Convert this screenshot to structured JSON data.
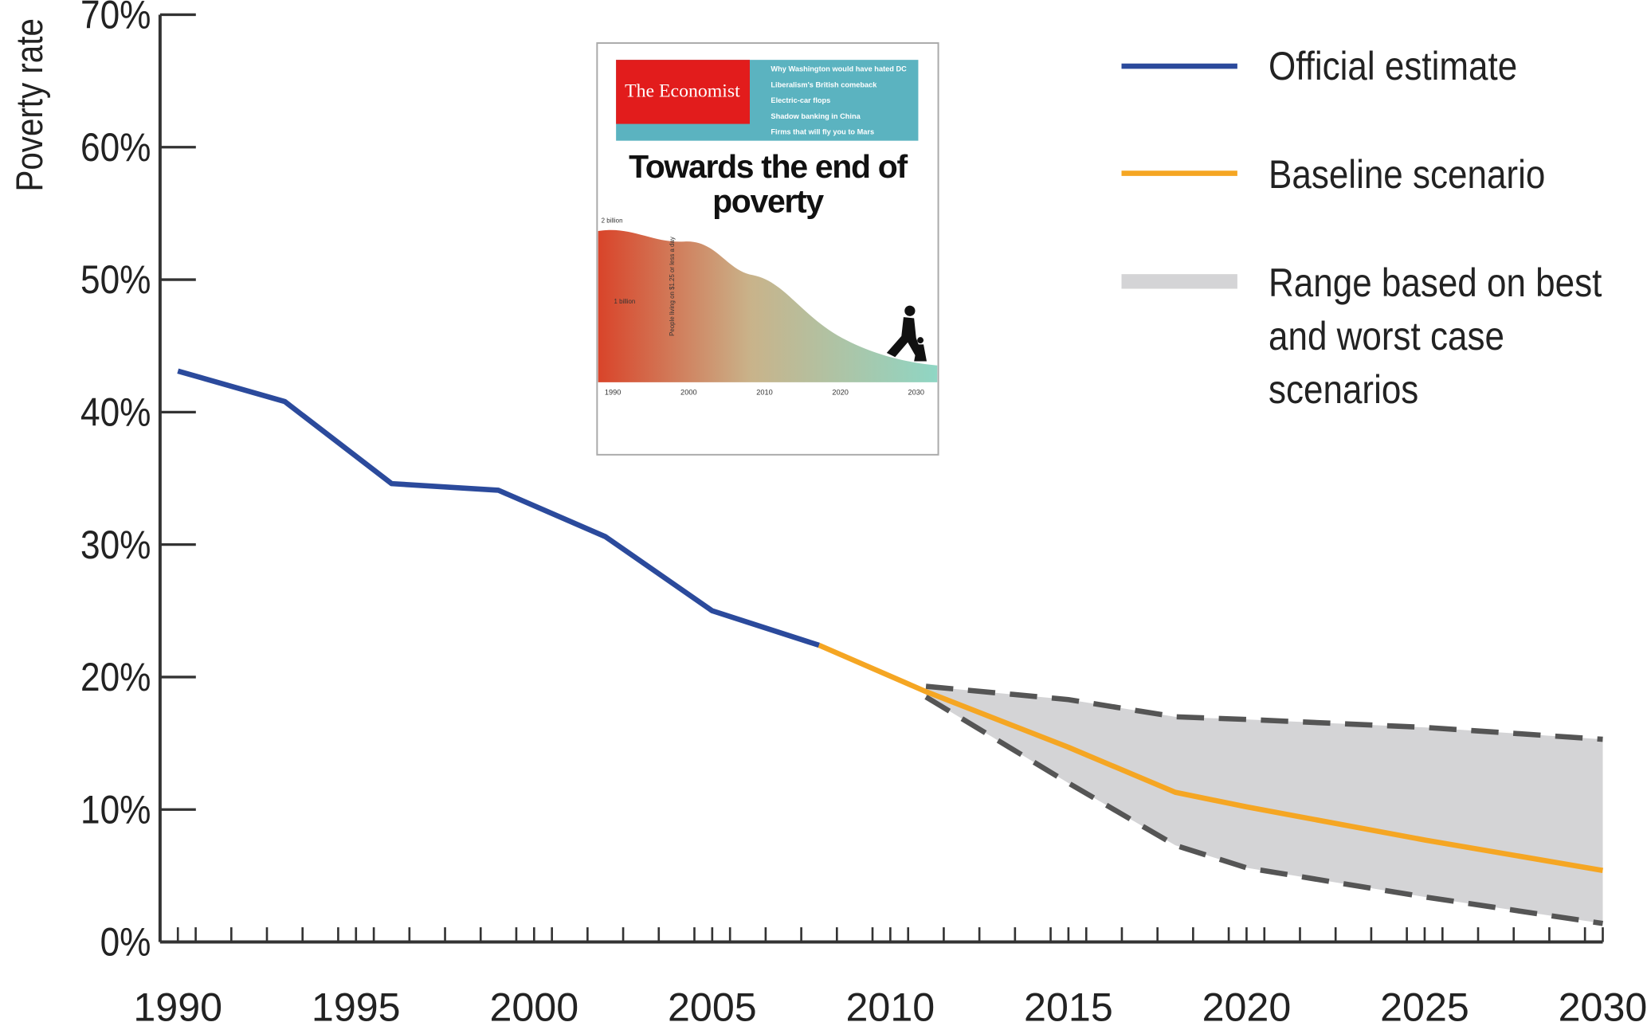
{
  "chart_data": {
    "type": "line",
    "ylabel": "Poverty rate",
    "x": [
      1990,
      1993,
      1996,
      1999,
      2002,
      2005,
      2008,
      2011,
      2015,
      2018,
      2020,
      2025,
      2030
    ],
    "xlim": [
      1989.5,
      2030
    ],
    "xticks": [
      1990,
      1995,
      2000,
      2005,
      2010,
      2015,
      2020,
      2025,
      2030
    ],
    "ylim": [
      0,
      70
    ],
    "yticks": [
      {
        "value": 0,
        "label": "0%"
      },
      {
        "value": 10,
        "label": "10%"
      },
      {
        "value": 20,
        "label": "20%"
      },
      {
        "value": 30,
        "label": "30%"
      },
      {
        "value": 40,
        "label": "40%"
      },
      {
        "value": 50,
        "label": "50%"
      },
      {
        "value": 60,
        "label": "60%"
      },
      {
        "value": 70,
        "label": "70%"
      }
    ],
    "series": [
      {
        "name": "Official estimate",
        "color": "#2b4a9c",
        "values": [
          43.1,
          40.8,
          34.6,
          34.1,
          30.6,
          25.0,
          22.4,
          null,
          null,
          null,
          null,
          null,
          null
        ]
      },
      {
        "name": "Baseline scenario",
        "color": "#f5a623",
        "values": [
          null,
          null,
          null,
          null,
          null,
          null,
          22.4,
          18.9,
          14.7,
          11.3,
          10.2,
          7.7,
          5.4
        ]
      }
    ],
    "range": {
      "name": "Range based on best and worst case scenarios",
      "color": "#d4d4d6",
      "line_color": "#555555",
      "upper": [
        null,
        null,
        null,
        null,
        null,
        null,
        null,
        19.3,
        18.3,
        17.0,
        16.8,
        16.2,
        15.3
      ],
      "lower": [
        null,
        null,
        null,
        null,
        null,
        null,
        null,
        18.5,
        12.0,
        7.3,
        5.6,
        3.4,
        1.4
      ]
    }
  },
  "inset": {
    "masthead": "The Economist",
    "headline": "Towards the end of poverty",
    "teasers": [
      "Why Washington would have hated DC",
      "Liberalism's British comeback",
      "Electric-car flops",
      "Shadow banking in China",
      "Firms that will fly you to Mars"
    ],
    "chart_labels": [
      "2 billion",
      "1 billion",
      "People living on $1.25 or less a day"
    ],
    "chart_years": [
      "1990",
      "2000",
      "2010",
      "2020",
      "2030"
    ]
  }
}
